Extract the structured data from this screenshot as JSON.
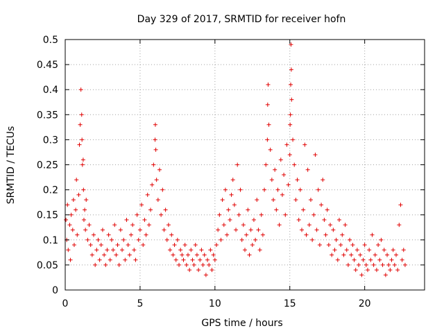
{
  "chart_data": {
    "type": "scatter",
    "title": "Day 329 of 2017, SRMTID for receiver hofn",
    "xlabel": "GPS time / hours",
    "ylabel": "SRMTID / TECUs",
    "xlim": [
      0,
      24
    ],
    "ylim": [
      0,
      0.5
    ],
    "xticks": [
      0,
      5,
      10,
      15,
      20
    ],
    "xtick_labels": [
      "0",
      "5",
      "10",
      "15",
      "20"
    ],
    "yticks": [
      0,
      0.05,
      0.1,
      0.15,
      0.2,
      0.25,
      0.3,
      0.35,
      0.4,
      0.45,
      0.5
    ],
    "ytick_labels": [
      "0",
      "0.05",
      "0.1",
      "0.15",
      "0.2",
      "0.25",
      "0.3",
      "0.35",
      "0.4",
      "0.45",
      "0.5"
    ],
    "grid": true,
    "marker": "+",
    "color": "#e00000",
    "series": [
      {
        "name": "SRMTID",
        "x": [
          0.05,
          0.1,
          0.15,
          0.2,
          0.3,
          0.35,
          0.4,
          0.5,
          0.55,
          0.6,
          0.7,
          0.75,
          0.8,
          0.9,
          0.95,
          1.0,
          1.05,
          1.1,
          1.12,
          1.15,
          1.2,
          1.22,
          1.25,
          1.3,
          1.35,
          1.4,
          1.5,
          1.6,
          1.7,
          1.8,
          1.9,
          2.0,
          2.1,
          2.2,
          2.3,
          2.4,
          2.5,
          2.6,
          2.7,
          2.8,
          2.9,
          3.0,
          3.1,
          3.2,
          3.3,
          3.4,
          3.5,
          3.6,
          3.7,
          3.8,
          3.9,
          4.0,
          4.1,
          4.2,
          4.3,
          4.4,
          4.5,
          4.6,
          4.7,
          4.8,
          4.9,
          5.0,
          5.1,
          5.2,
          5.3,
          5.4,
          5.5,
          5.6,
          5.7,
          5.8,
          5.9,
          6.0,
          6.02,
          6.05,
          6.1,
          6.2,
          6.3,
          6.4,
          6.5,
          6.6,
          6.7,
          6.8,
          6.9,
          7.0,
          7.1,
          7.2,
          7.3,
          7.4,
          7.5,
          7.6,
          7.7,
          7.8,
          7.9,
          8.0,
          8.1,
          8.2,
          8.3,
          8.4,
          8.5,
          8.6,
          8.7,
          8.8,
          8.9,
          9.0,
          9.1,
          9.2,
          9.3,
          9.4,
          9.5,
          9.6,
          9.7,
          9.8,
          9.9,
          10.0,
          10.1,
          10.2,
          10.3,
          10.4,
          10.5,
          10.6,
          10.7,
          10.8,
          10.9,
          11.0,
          11.1,
          11.2,
          11.3,
          11.4,
          11.5,
          11.6,
          11.7,
          11.8,
          11.9,
          12.0,
          12.1,
          12.2,
          12.3,
          12.4,
          12.5,
          12.6,
          12.7,
          12.8,
          12.9,
          13.0,
          13.1,
          13.2,
          13.3,
          13.4,
          13.5,
          13.52,
          13.55,
          13.6,
          13.7,
          13.8,
          13.9,
          14.0,
          14.1,
          14.2,
          14.3,
          14.4,
          14.5,
          14.6,
          14.7,
          14.8,
          14.9,
          15.0,
          15.02,
          15.04,
          15.06,
          15.08,
          15.1,
          15.12,
          15.2,
          15.3,
          15.4,
          15.5,
          15.6,
          15.7,
          15.8,
          15.9,
          16.0,
          16.1,
          16.2,
          16.3,
          16.4,
          16.5,
          16.6,
          16.7,
          16.8,
          16.9,
          17.0,
          17.1,
          17.2,
          17.3,
          17.4,
          17.5,
          17.6,
          17.7,
          17.8,
          17.9,
          18.0,
          18.1,
          18.2,
          18.3,
          18.4,
          18.5,
          18.6,
          18.7,
          18.8,
          18.9,
          19.0,
          19.1,
          19.2,
          19.3,
          19.4,
          19.5,
          19.6,
          19.7,
          19.8,
          19.9,
          20.0,
          20.1,
          20.2,
          20.3,
          20.4,
          20.5,
          20.6,
          20.7,
          20.8,
          20.9,
          21.0,
          21.1,
          21.2,
          21.3,
          21.4,
          21.5,
          21.6,
          21.7,
          21.8,
          21.9,
          22.0,
          22.1,
          22.2,
          22.3,
          22.4,
          22.5,
          22.6,
          22.7
        ],
        "y": [
          0.14,
          0.1,
          0.17,
          0.08,
          0.13,
          0.06,
          0.15,
          0.12,
          0.18,
          0.09,
          0.16,
          0.22,
          0.11,
          0.19,
          0.29,
          0.33,
          0.4,
          0.35,
          0.3,
          0.25,
          0.26,
          0.2,
          0.14,
          0.16,
          0.12,
          0.18,
          0.1,
          0.13,
          0.09,
          0.07,
          0.11,
          0.05,
          0.08,
          0.1,
          0.06,
          0.09,
          0.12,
          0.07,
          0.05,
          0.08,
          0.11,
          0.06,
          0.1,
          0.08,
          0.13,
          0.07,
          0.09,
          0.05,
          0.12,
          0.08,
          0.1,
          0.06,
          0.14,
          0.09,
          0.07,
          0.11,
          0.13,
          0.08,
          0.06,
          0.15,
          0.1,
          0.12,
          0.17,
          0.09,
          0.14,
          0.11,
          0.19,
          0.13,
          0.16,
          0.21,
          0.25,
          0.3,
          0.33,
          0.28,
          0.22,
          0.18,
          0.24,
          0.15,
          0.2,
          0.12,
          0.16,
          0.1,
          0.13,
          0.08,
          0.11,
          0.07,
          0.09,
          0.06,
          0.1,
          0.05,
          0.08,
          0.07,
          0.06,
          0.09,
          0.05,
          0.07,
          0.04,
          0.08,
          0.06,
          0.05,
          0.09,
          0.07,
          0.04,
          0.06,
          0.08,
          0.05,
          0.07,
          0.03,
          0.06,
          0.05,
          0.08,
          0.04,
          0.07,
          0.06,
          0.09,
          0.12,
          0.15,
          0.1,
          0.18,
          0.13,
          0.2,
          0.11,
          0.16,
          0.14,
          0.19,
          0.22,
          0.17,
          0.12,
          0.25,
          0.15,
          0.2,
          0.1,
          0.13,
          0.08,
          0.11,
          0.16,
          0.07,
          0.12,
          0.09,
          0.14,
          0.1,
          0.18,
          0.12,
          0.08,
          0.15,
          0.11,
          0.2,
          0.25,
          0.3,
          0.37,
          0.41,
          0.33,
          0.28,
          0.22,
          0.18,
          0.24,
          0.16,
          0.2,
          0.13,
          0.26,
          0.19,
          0.23,
          0.15,
          0.29,
          0.21,
          0.27,
          0.33,
          0.35,
          0.41,
          0.49,
          0.44,
          0.38,
          0.3,
          0.25,
          0.18,
          0.22,
          0.14,
          0.2,
          0.12,
          0.16,
          0.29,
          0.11,
          0.24,
          0.13,
          0.18,
          0.1,
          0.15,
          0.27,
          0.12,
          0.2,
          0.09,
          0.17,
          0.22,
          0.14,
          0.11,
          0.16,
          0.09,
          0.13,
          0.07,
          0.12,
          0.08,
          0.1,
          0.06,
          0.14,
          0.09,
          0.11,
          0.07,
          0.13,
          0.08,
          0.05,
          0.1,
          0.07,
          0.09,
          0.06,
          0.04,
          0.08,
          0.05,
          0.07,
          0.03,
          0.06,
          0.09,
          0.05,
          0.04,
          0.08,
          0.06,
          0.11,
          0.05,
          0.07,
          0.04,
          0.09,
          0.06,
          0.1,
          0.05,
          0.08,
          0.03,
          0.07,
          0.05,
          0.04,
          0.06,
          0.08,
          0.05,
          0.07,
          0.04,
          0.13,
          0.17,
          0.06,
          0.08,
          0.05
        ]
      }
    ]
  }
}
